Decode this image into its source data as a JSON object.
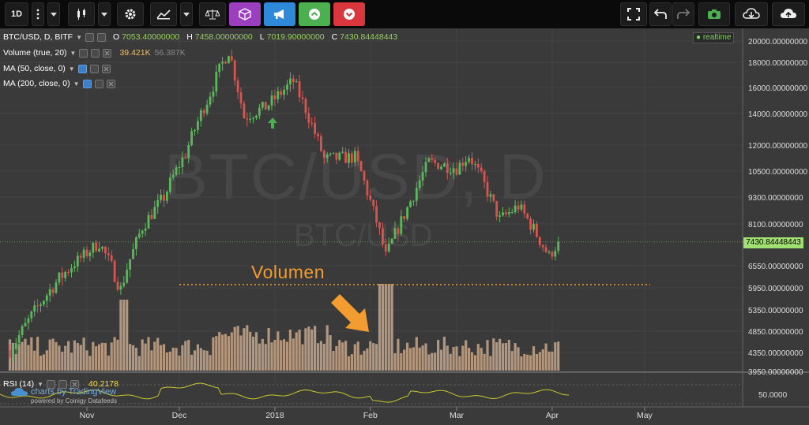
{
  "toolbar": {
    "interval": "1D",
    "buttons": [
      "more-menu",
      "candle-style",
      "style-dropdown",
      "settings",
      "indicators",
      "indicators-dropdown",
      "compare",
      "cube-tool",
      "announce",
      "up-alert",
      "down-alert",
      "fullscreen",
      "undo",
      "redo",
      "snapshot",
      "cloud-download",
      "cloud-upload"
    ],
    "colors": {
      "cube": "#9b3fbf",
      "announce": "#2e8ad8",
      "up": "#4caf50",
      "down": "#d9363e"
    }
  },
  "legend": {
    "symbol": "BTC/USD, D, BITF",
    "o_label": "O",
    "o": "7053.40000000",
    "h_label": "H",
    "h": "7458.00000000",
    "l_label": "L",
    "l": "7019.90000000",
    "c_label": "C",
    "c": "7430.84448443",
    "volume": "Volume (true, 20)",
    "volume_v1": "39.421K",
    "volume_v2": "56.387K",
    "ma50": "MA (50, close, 0)",
    "ma200": "MA (200, close, 0)",
    "rsi": "RSI (14)",
    "rsi_value": "40.2178"
  },
  "realtime": "realtime",
  "price_tag": "7430.84448443",
  "annotation": "Volumen",
  "watermark": {
    "main": "BTC/USD, D",
    "sub": "BTC/USD"
  },
  "branding": {
    "main": "charts by TradingView",
    "sub": "powered by Coinigy Datafeeds"
  },
  "colors": {
    "up": "#5cb85c",
    "down": "#d9534f",
    "volume": "#c8a78a",
    "rsi_line": "#c8c830",
    "annotation": "#f39c2f",
    "background": "#3a3a3a"
  },
  "chart_data": {
    "type": "candlestick",
    "x_ticks": [
      "Nov",
      "Dec",
      "2018",
      "Feb",
      "Mar",
      "Apr",
      "May"
    ],
    "y_ticks": [
      "20000.00000000",
      "18000.00000000",
      "16000.00000000",
      "14000.00000000",
      "12000.00000000",
      "10500.00000000",
      "9300.00000000",
      "8100.00000000",
      "6550.00000000",
      "5950.00000000",
      "5350.00000000",
      "4850.00000000",
      "4350.00000000",
      "3950.00000000"
    ],
    "rsi_ticks": [
      "50.0000"
    ],
    "ylim": [
      3950,
      20000
    ],
    "approx_close_path": [
      [
        "2017-10-07",
        4400
      ],
      [
        "2017-10-21",
        6000
      ],
      [
        "2017-11-05",
        7400
      ],
      [
        "2017-11-12",
        5900
      ],
      [
        "2017-11-19",
        8000
      ],
      [
        "2017-11-26",
        9300
      ],
      [
        "2017-12-03",
        11500
      ],
      [
        "2017-12-10",
        15000
      ],
      [
        "2017-12-17",
        19100
      ],
      [
        "2017-12-22",
        13800
      ],
      [
        "2017-12-29",
        14500
      ],
      [
        "2018-01-07",
        16500
      ],
      [
        "2018-01-12",
        13800
      ],
      [
        "2018-01-17",
        11200
      ],
      [
        "2018-01-27",
        11300
      ],
      [
        "2018-02-06",
        6900
      ],
      [
        "2018-02-12",
        8500
      ],
      [
        "2018-02-20",
        11000
      ],
      [
        "2018-03-01",
        10700
      ],
      [
        "2018-03-05",
        11400
      ],
      [
        "2018-03-15",
        8300
      ],
      [
        "2018-03-21",
        8900
      ],
      [
        "2018-03-31",
        6900
      ],
      [
        "2018-04-03",
        7430.84
      ]
    ]
  }
}
